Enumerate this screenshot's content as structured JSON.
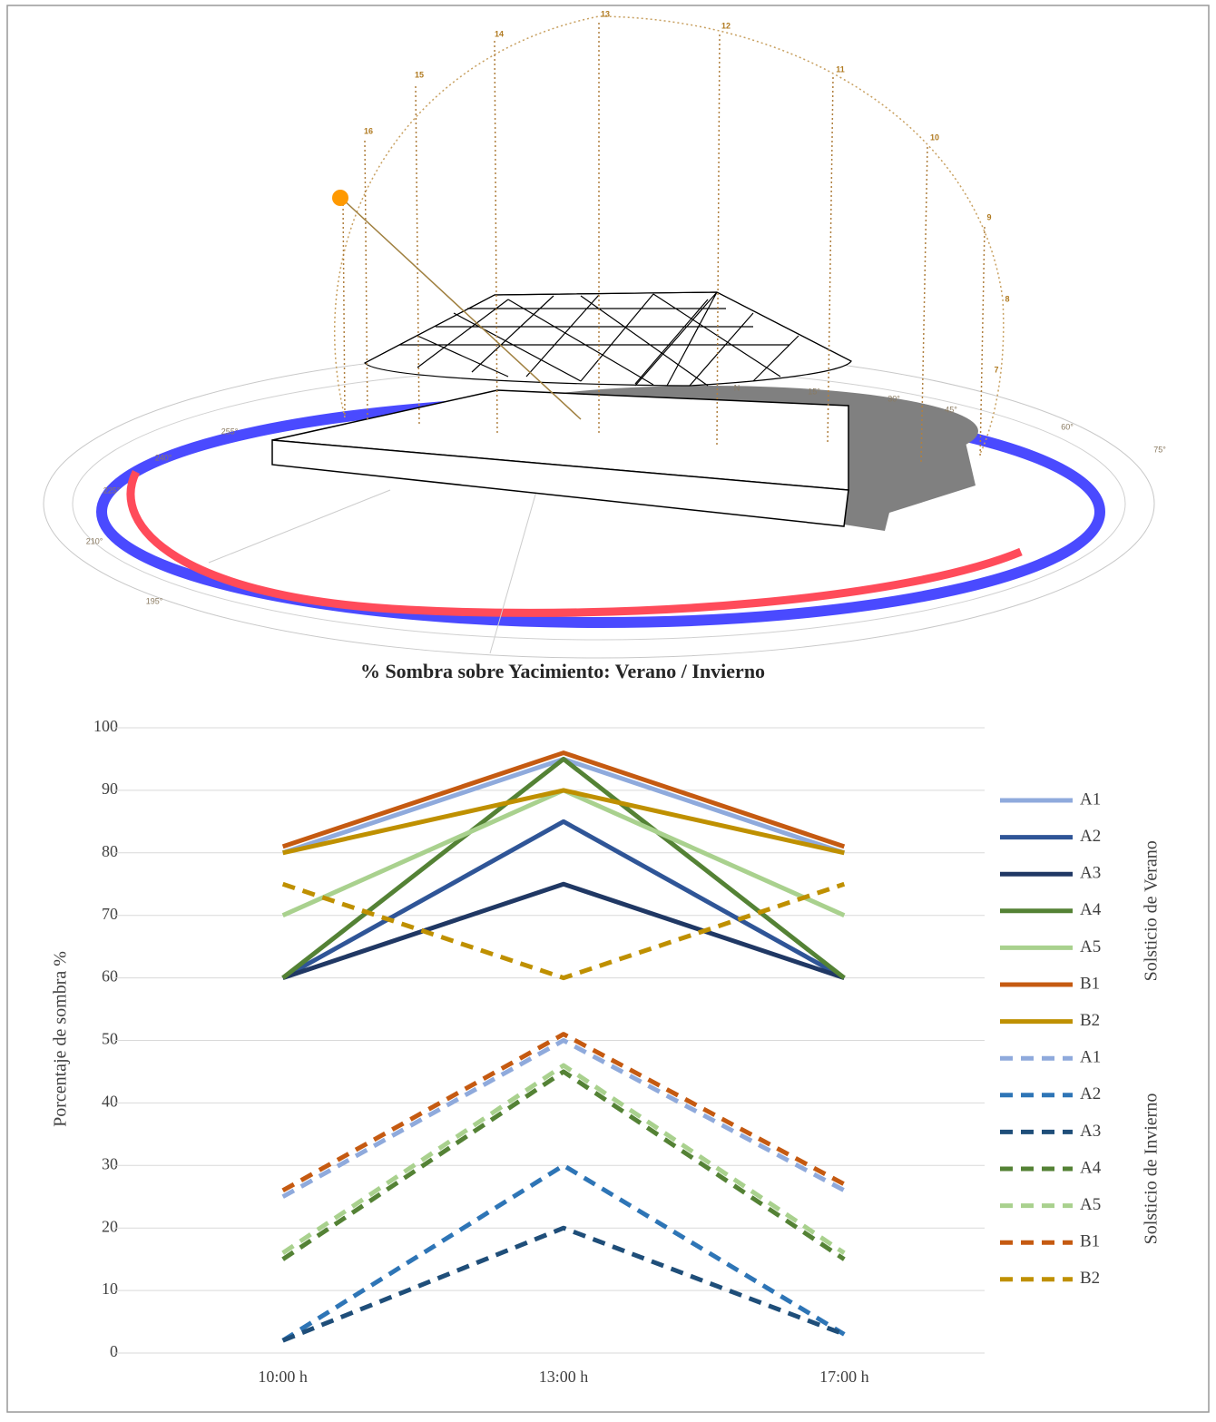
{
  "illustration": {
    "hour_labels": [
      "13",
      "12",
      "14",
      "11",
      "15",
      "10",
      "16",
      "9",
      "8",
      "7"
    ],
    "degree_labels": [
      "N",
      "15°",
      "30°",
      "45°",
      "60°",
      "75°",
      "255°",
      "240°",
      "225°",
      "210°",
      "195°"
    ]
  },
  "chart_data": {
    "type": "line",
    "title": "% Sombra sobre Yacimiento: Verano / Invierno",
    "y_label": "Porcentaje de sombra %",
    "categories": [
      "10:00 h",
      "13:00 h",
      "17:00 h"
    ],
    "ylim": [
      0,
      100
    ],
    "yticks": [
      0,
      10,
      20,
      30,
      40,
      50,
      60,
      70,
      80,
      90,
      100
    ],
    "grid": true,
    "legend_titles": {
      "solid": "Solsticio de Verano",
      "dashed": "Solsticio de Invierno"
    },
    "series": [
      {
        "name": "A1",
        "color": "#8faadc",
        "dashed": false,
        "values": [
          80,
          95,
          80
        ]
      },
      {
        "name": "A2",
        "color": "#2f5597",
        "dashed": false,
        "values": [
          60,
          85,
          60
        ]
      },
      {
        "name": "A3",
        "color": "#203864",
        "dashed": false,
        "values": [
          60,
          75,
          60
        ]
      },
      {
        "name": "A4",
        "color": "#548235",
        "dashed": false,
        "values": [
          60,
          95,
          60
        ]
      },
      {
        "name": "A5",
        "color": "#a9d18e",
        "dashed": false,
        "values": [
          70,
          90,
          70
        ]
      },
      {
        "name": "B1",
        "color": "#c55a11",
        "dashed": false,
        "values": [
          81,
          96,
          81
        ]
      },
      {
        "name": "B2",
        "color": "#bf9000",
        "dashed": false,
        "values": [
          80,
          90,
          80
        ]
      },
      {
        "name": "A1",
        "color": "#8faadc",
        "dashed": true,
        "values": [
          25,
          50,
          26
        ]
      },
      {
        "name": "A2",
        "color": "#2e75b6",
        "dashed": true,
        "values": [
          2,
          30,
          3
        ]
      },
      {
        "name": "A3",
        "color": "#1f4e79",
        "dashed": true,
        "values": [
          2,
          20,
          3
        ]
      },
      {
        "name": "A4",
        "color": "#548235",
        "dashed": true,
        "values": [
          15,
          45,
          15
        ]
      },
      {
        "name": "A5",
        "color": "#a9d18e",
        "dashed": true,
        "values": [
          16,
          46,
          16
        ]
      },
      {
        "name": "B1",
        "color": "#c55a11",
        "dashed": true,
        "values": [
          26,
          51,
          27
        ]
      },
      {
        "name": "B2",
        "color": "#bf9000",
        "dashed": true,
        "values": [
          75,
          60,
          75
        ]
      }
    ]
  }
}
